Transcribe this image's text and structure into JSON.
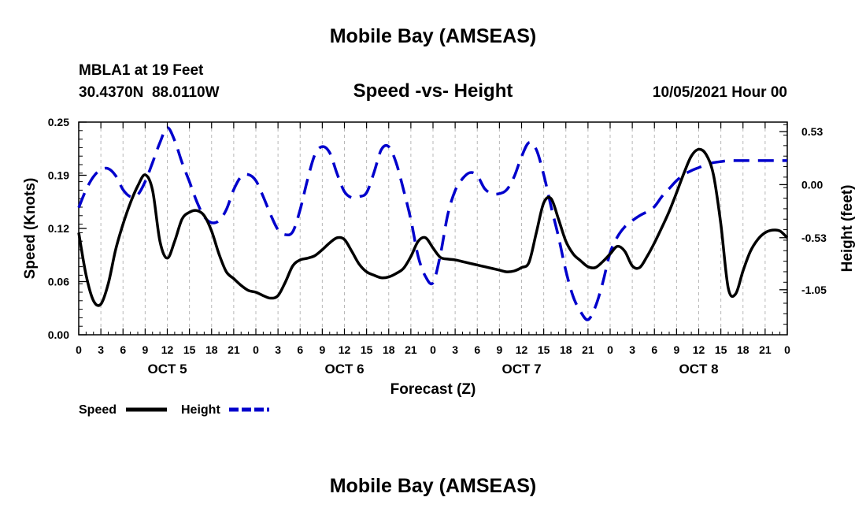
{
  "chart_data": {
    "type": "line",
    "title": "Mobile Bay (AMSEAS)",
    "footer_title": "Mobile Bay (AMSEAS)",
    "station_label": "MBLA1 at 19 Feet",
    "coordinates": "30.4370N  88.0110W",
    "subtitle": "Speed -vs- Height",
    "issue_time": "10/05/2021 Hour 00",
    "xlabel": "Forecast (Z)",
    "ylabel_left": "Speed (Knots)",
    "ylabel_right": "Height (feet)",
    "xlim_hours": [
      0,
      96
    ],
    "ylim_left": [
      0,
      0.25
    ],
    "ylim_right": [
      -1.5,
      0.625
    ],
    "left_ticks": [
      "0.00",
      "0.06",
      "0.12",
      "0.19",
      "0.25"
    ],
    "left_tick_values": [
      0,
      0.0625,
      0.125,
      0.1875,
      0.25
    ],
    "right_ticks": [
      "0.53",
      "0.00",
      "-0.53",
      "-1.05"
    ],
    "right_tick_values": [
      0.53,
      0.0,
      -0.53,
      -1.05
    ],
    "x_tick_labels": [
      "0",
      "3",
      "6",
      "9",
      "12",
      "15",
      "18",
      "21",
      "0",
      "3",
      "6",
      "9",
      "12",
      "15",
      "18",
      "21",
      "0",
      "3",
      "6",
      "9",
      "12",
      "15",
      "18",
      "21",
      "0",
      "3",
      "6",
      "9",
      "12",
      "15",
      "18",
      "21",
      "0"
    ],
    "day_labels": [
      {
        "label": "OCT 5",
        "hour": 12
      },
      {
        "label": "OCT 6",
        "hour": 36
      },
      {
        "label": "OCT 7",
        "hour": 60
      },
      {
        "label": "OCT 8",
        "hour": 84
      }
    ],
    "legend": [
      {
        "name": "Speed",
        "color": "#000000",
        "style": "solid"
      },
      {
        "name": "Height",
        "color": "#0000cc",
        "style": "dashed"
      }
    ],
    "series": [
      {
        "name": "Speed",
        "axis": "left",
        "color": "#000000",
        "style": "solid",
        "x": [
          0,
          1,
          2,
          3,
          4,
          5,
          6,
          7,
          8,
          9,
          10,
          11,
          12,
          13,
          14,
          15,
          16,
          17,
          18,
          19,
          20,
          21,
          22,
          23,
          24,
          25,
          26,
          27,
          28,
          29,
          30,
          31,
          32,
          33,
          34,
          35,
          36,
          37,
          38,
          39,
          40,
          41,
          42,
          43,
          44,
          45,
          46,
          47,
          48,
          49,
          50,
          51,
          52,
          53,
          54,
          55,
          56,
          57,
          58,
          59,
          60,
          61,
          62,
          63,
          64,
          65,
          66,
          67,
          68,
          69,
          70,
          71,
          72,
          73,
          74,
          75,
          76,
          77,
          78,
          79,
          80,
          81,
          82,
          83,
          84,
          85,
          86,
          87,
          88,
          89,
          90,
          91,
          92,
          93,
          94,
          95,
          96
        ],
        "y": [
          0.12,
          0.07,
          0.04,
          0.036,
          0.06,
          0.1,
          0.13,
          0.155,
          0.175,
          0.188,
          0.17,
          0.11,
          0.09,
          0.11,
          0.136,
          0.144,
          0.146,
          0.14,
          0.122,
          0.095,
          0.074,
          0.066,
          0.058,
          0.052,
          0.05,
          0.046,
          0.043,
          0.046,
          0.062,
          0.081,
          0.088,
          0.09,
          0.093,
          0.1,
          0.108,
          0.114,
          0.112,
          0.098,
          0.083,
          0.074,
          0.07,
          0.067,
          0.068,
          0.072,
          0.078,
          0.092,
          0.11,
          0.114,
          0.102,
          0.091,
          0.089,
          0.088,
          0.086,
          0.084,
          0.082,
          0.08,
          0.078,
          0.076,
          0.074,
          0.075,
          0.079,
          0.085,
          0.12,
          0.155,
          0.16,
          0.136,
          0.11,
          0.095,
          0.087,
          0.08,
          0.079,
          0.086,
          0.095,
          0.104,
          0.098,
          0.081,
          0.079,
          0.092,
          0.108,
          0.126,
          0.145,
          0.167,
          0.19,
          0.21,
          0.218,
          0.212,
          0.188,
          0.13,
          0.055,
          0.048,
          0.075,
          0.098,
          0.112,
          0.12,
          0.123,
          0.122,
          0.114
        ]
      },
      {
        "name": "Height",
        "axis": "right",
        "color": "#0000cc",
        "style": "dashed",
        "x": [
          0,
          1,
          2,
          3,
          4,
          5,
          6,
          7,
          8,
          9,
          10,
          11,
          12,
          13,
          14,
          15,
          16,
          17,
          18,
          19,
          20,
          21,
          22,
          23,
          24,
          25,
          26,
          27,
          28,
          29,
          30,
          31,
          32,
          33,
          34,
          35,
          36,
          37,
          38,
          39,
          40,
          41,
          42,
          43,
          44,
          45,
          46,
          47,
          48,
          49,
          50,
          51,
          52,
          53,
          54,
          55,
          56,
          57,
          58,
          59,
          60,
          61,
          62,
          63,
          64,
          65,
          66,
          67,
          68,
          69,
          70,
          71,
          72,
          73,
          74,
          75,
          76,
          77,
          78,
          79,
          80,
          81,
          82,
          83,
          84,
          85,
          86,
          87,
          88,
          89,
          90,
          91,
          92,
          93,
          94,
          95,
          96
        ],
        "y": [
          -0.23,
          -0.05,
          0.08,
          0.15,
          0.16,
          0.09,
          -0.05,
          -0.12,
          -0.1,
          0.03,
          0.22,
          0.42,
          0.57,
          0.44,
          0.22,
          0.03,
          -0.17,
          -0.32,
          -0.38,
          -0.36,
          -0.25,
          -0.05,
          0.08,
          0.1,
          0.04,
          -0.12,
          -0.3,
          -0.45,
          -0.5,
          -0.47,
          -0.25,
          0.05,
          0.3,
          0.38,
          0.32,
          0.11,
          -0.07,
          -0.13,
          -0.12,
          -0.08,
          0.12,
          0.35,
          0.38,
          0.22,
          -0.05,
          -0.35,
          -0.72,
          -0.92,
          -0.98,
          -0.7,
          -0.3,
          -0.06,
          0.06,
          0.12,
          0.09,
          -0.04,
          -0.09,
          -0.09,
          -0.05,
          0.08,
          0.28,
          0.42,
          0.35,
          0.1,
          -0.22,
          -0.52,
          -0.86,
          -1.12,
          -1.27,
          -1.35,
          -1.22,
          -0.98,
          -0.68,
          -0.52,
          -0.42,
          -0.36,
          -0.31,
          -0.27,
          -0.22,
          -0.12,
          -0.04,
          0.04,
          0.1,
          0.14,
          0.17,
          0.2,
          0.22,
          0.23,
          0.24,
          0.24,
          0.24,
          0.24,
          0.24,
          0.24,
          0.24,
          0.24,
          0.24
        ]
      }
    ]
  }
}
